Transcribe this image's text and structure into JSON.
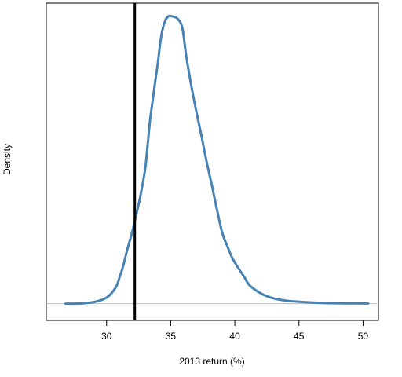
{
  "chart_data": {
    "type": "line",
    "xlabel": "2013 return (%)",
    "ylabel": "Density",
    "xlim": [
      25.3,
      51.2
    ],
    "x_ticks": [
      30,
      35,
      40,
      45,
      50
    ],
    "ylim": [
      -0.011,
      0.197
    ],
    "y_ticks_visible": false,
    "grid": false,
    "series": [
      {
        "color": "#4682b4",
        "x": [
          26.8,
          28.0,
          28.8,
          29.4,
          30.0,
          30.4,
          30.8,
          31.0,
          31.3,
          31.6,
          32.0,
          32.3,
          32.6,
          33.0,
          33.2,
          33.4,
          33.7,
          34.0,
          34.2,
          34.4,
          34.6,
          34.8,
          35.0,
          35.5,
          35.9,
          36.2,
          36.6,
          37.0,
          37.4,
          37.8,
          38.2,
          38.6,
          39.0,
          39.4,
          39.8,
          40.3,
          40.7,
          41.1,
          41.6,
          42.2,
          43.0,
          44.0,
          45.5,
          47.0,
          48.5,
          50.4
        ],
        "y": [
          0.0,
          0.0001,
          0.0008,
          0.0018,
          0.004,
          0.007,
          0.012,
          0.017,
          0.025,
          0.035,
          0.047,
          0.058,
          0.069,
          0.088,
          0.104,
          0.121,
          0.14,
          0.158,
          0.172,
          0.181,
          0.186,
          0.1882,
          0.1885,
          0.187,
          0.181,
          0.163,
          0.143,
          0.126,
          0.11,
          0.093,
          0.078,
          0.062,
          0.047,
          0.038,
          0.03,
          0.023,
          0.018,
          0.0125,
          0.009,
          0.006,
          0.0035,
          0.002,
          0.001,
          0.0004,
          0.0002,
          0.0001
        ]
      }
    ],
    "vline": {
      "x": 32.2,
      "color": "#000000"
    },
    "baseline": {
      "y": 0,
      "color": "#bebebe"
    }
  }
}
